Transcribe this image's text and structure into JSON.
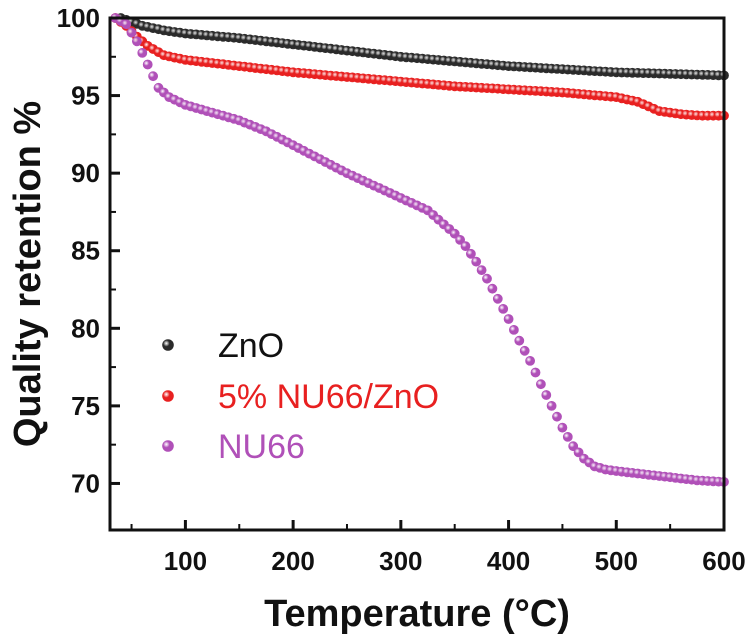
{
  "chart_data": {
    "type": "scatter",
    "xlabel": "Temperature (°C)",
    "ylabel": "Quality retention %",
    "xlim": [
      30,
      600
    ],
    "ylim": [
      67,
      100
    ],
    "x_ticks": [
      100,
      200,
      300,
      400,
      500,
      600
    ],
    "y_ticks": [
      70,
      75,
      80,
      85,
      90,
      95,
      100
    ],
    "legend_position": "bottom-left",
    "series": [
      {
        "name": "ZnO",
        "color": "#2b2b2b",
        "x": [
          40,
          60,
          80,
          100,
          150,
          200,
          250,
          300,
          350,
          400,
          450,
          500,
          550,
          600
        ],
        "y": [
          100,
          99.5,
          99.2,
          99.0,
          98.7,
          98.3,
          97.9,
          97.5,
          97.2,
          96.9,
          96.7,
          96.5,
          96.4,
          96.3
        ]
      },
      {
        "name": "5% NU66/ZnO",
        "color": "#e82020",
        "x": [
          35,
          45,
          55,
          65,
          80,
          100,
          150,
          200,
          250,
          300,
          350,
          400,
          450,
          500,
          520,
          540,
          560,
          580,
          600
        ],
        "y": [
          100,
          99.5,
          98.8,
          98.2,
          97.6,
          97.3,
          96.9,
          96.5,
          96.2,
          95.9,
          95.6,
          95.4,
          95.2,
          94.9,
          94.6,
          94.0,
          93.8,
          93.7,
          93.7
        ]
      },
      {
        "name": "NU66",
        "color": "#b050b8",
        "x": [
          35,
          45,
          55,
          65,
          75,
          85,
          100,
          120,
          150,
          175,
          200,
          225,
          250,
          275,
          300,
          325,
          350,
          360,
          370,
          380,
          390,
          400,
          410,
          420,
          430,
          440,
          450,
          460,
          470,
          480,
          490,
          500,
          525,
          550,
          575,
          600
        ],
        "y": [
          100,
          99.6,
          98.5,
          97.0,
          95.5,
          94.9,
          94.4,
          94.0,
          93.4,
          92.7,
          91.8,
          90.9,
          90.0,
          89.2,
          88.4,
          87.6,
          86.1,
          85.3,
          84.3,
          83.2,
          81.9,
          80.6,
          79.2,
          77.9,
          76.4,
          75.0,
          73.6,
          72.4,
          71.6,
          71.1,
          70.9,
          70.8,
          70.6,
          70.4,
          70.2,
          70.1
        ]
      }
    ]
  }
}
